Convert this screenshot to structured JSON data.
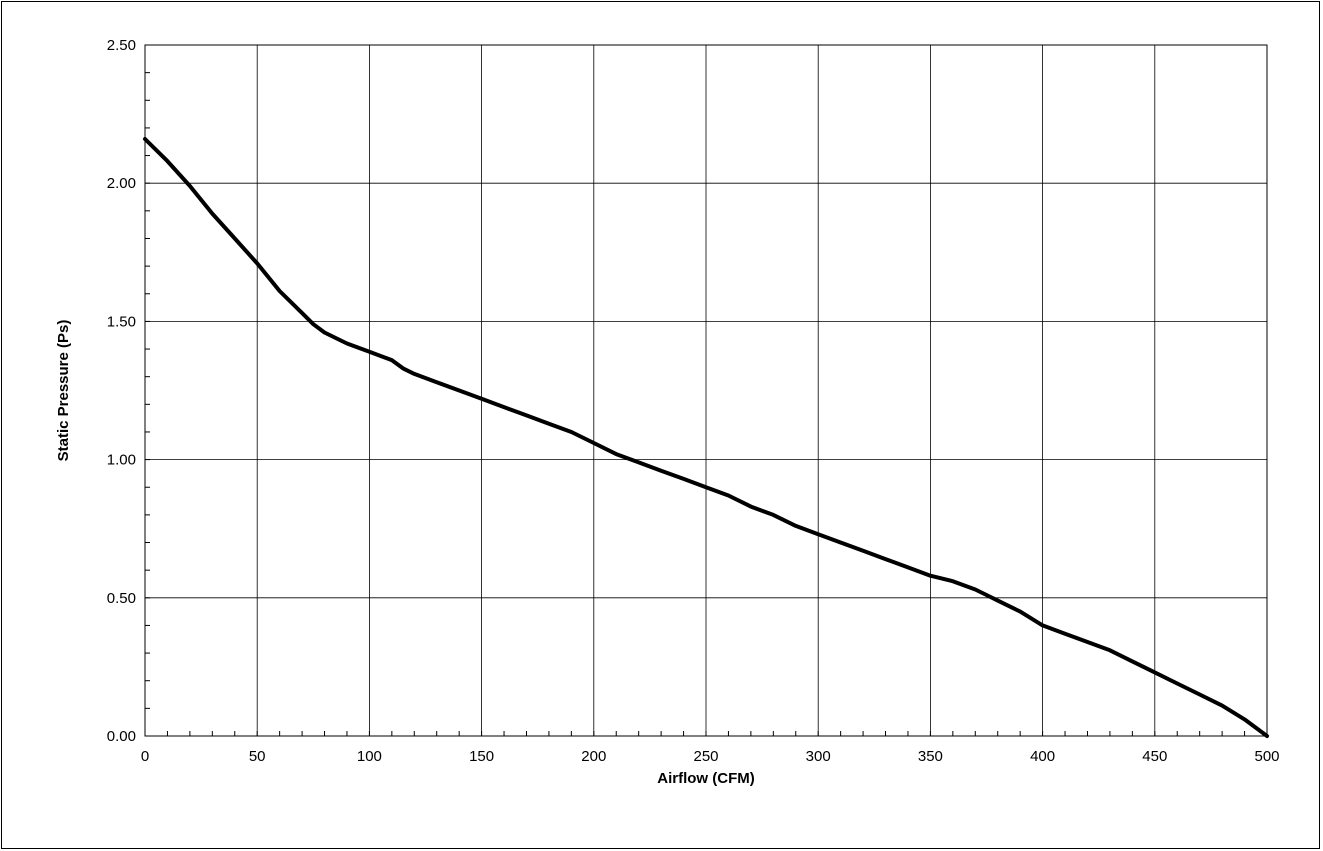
{
  "chart_data": {
    "type": "line",
    "title": "",
    "xlabel": "Airflow (CFM)",
    "ylabel": "Static Pressure (Ps)",
    "xlim": [
      0,
      500
    ],
    "ylim": [
      0,
      2.5
    ],
    "x_ticks": [
      "0",
      "50",
      "100",
      "150",
      "200",
      "250",
      "300",
      "350",
      "400",
      "450",
      "500"
    ],
    "y_ticks": [
      "0.00",
      "0.50",
      "1.00",
      "1.50",
      "2.00",
      "2.50"
    ],
    "grid": true,
    "legend": "none",
    "line_color": "#000000",
    "series": [
      {
        "x": [
          0,
          10,
          20,
          30,
          40,
          50,
          60,
          70,
          75,
          80,
          85,
          90,
          100,
          110,
          115,
          120,
          130,
          140,
          150,
          160,
          170,
          180,
          190,
          200,
          210,
          220,
          230,
          240,
          250,
          260,
          270,
          280,
          290,
          300,
          310,
          320,
          330,
          340,
          350,
          360,
          370,
          375,
          380,
          390,
          400,
          410,
          420,
          430,
          440,
          450,
          460,
          470,
          480,
          490,
          500
        ],
        "y": [
          2.16,
          2.08,
          1.99,
          1.89,
          1.8,
          1.71,
          1.61,
          1.53,
          1.49,
          1.46,
          1.44,
          1.42,
          1.39,
          1.36,
          1.33,
          1.31,
          1.28,
          1.25,
          1.22,
          1.19,
          1.16,
          1.13,
          1.1,
          1.06,
          1.02,
          0.99,
          0.96,
          0.93,
          0.9,
          0.87,
          0.83,
          0.8,
          0.76,
          0.73,
          0.7,
          0.67,
          0.64,
          0.61,
          0.58,
          0.56,
          0.53,
          0.51,
          0.49,
          0.45,
          0.4,
          0.37,
          0.34,
          0.31,
          0.27,
          0.23,
          0.19,
          0.15,
          0.11,
          0.06,
          0.0
        ]
      }
    ]
  }
}
